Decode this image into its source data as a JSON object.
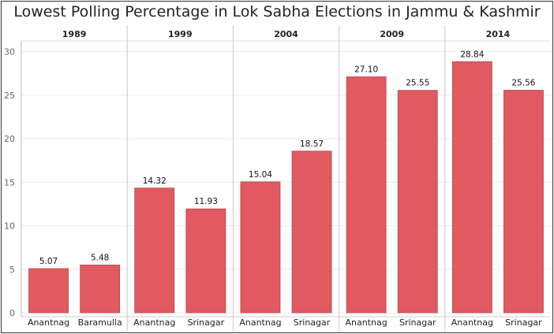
{
  "chart_data": {
    "type": "bar",
    "title": "Lowest Polling Percentage in Lok Sabha Elections in Jammu & Kashmir",
    "xlabel": "",
    "ylabel": "",
    "ylim": [
      0,
      31
    ],
    "yticks": [
      0,
      5,
      10,
      15,
      20,
      25,
      30
    ],
    "grid": true,
    "bar_color": "#e05a5f",
    "panels": [
      {
        "year": "1989",
        "bars": [
          {
            "category": "Anantnag",
            "value": 5.07,
            "label": "5.07"
          },
          {
            "category": "Baramulla",
            "value": 5.48,
            "label": "5.48"
          }
        ]
      },
      {
        "year": "1999",
        "bars": [
          {
            "category": "Anantnag",
            "value": 14.32,
            "label": "14.32"
          },
          {
            "category": "Srinagar",
            "value": 11.93,
            "label": "11.93"
          }
        ]
      },
      {
        "year": "2004",
        "bars": [
          {
            "category": "Anantnag",
            "value": 15.04,
            "label": "15.04"
          },
          {
            "category": "Srinagar",
            "value": 18.57,
            "label": "18.57"
          }
        ]
      },
      {
        "year": "2009",
        "bars": [
          {
            "category": "Anantnag",
            "value": 27.1,
            "label": "27.10"
          },
          {
            "category": "Srinagar",
            "value": 25.55,
            "label": "25.55"
          }
        ]
      },
      {
        "year": "2014",
        "bars": [
          {
            "category": "Anantnag",
            "value": 28.84,
            "label": "28.84"
          },
          {
            "category": "Srinagar",
            "value": 25.56,
            "label": "25.56"
          }
        ]
      }
    ]
  }
}
